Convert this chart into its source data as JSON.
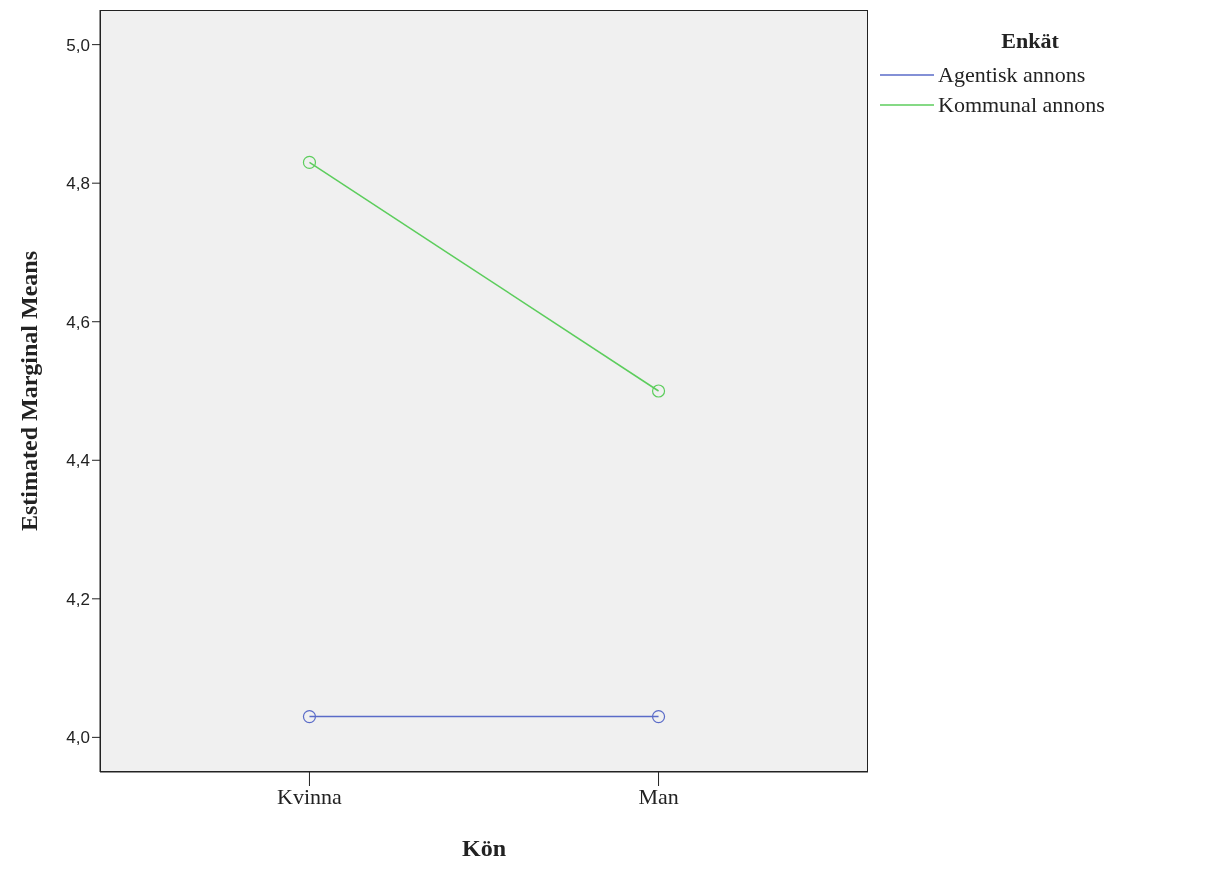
{
  "chart_data": {
    "type": "line",
    "xlabel": "Kön",
    "ylabel": "Estimated Marginal Means",
    "legend_title": "Enkät",
    "categories": [
      "Kvinna",
      "Man"
    ],
    "series": [
      {
        "name": "Agentisk annons",
        "color": "#5a6bc8",
        "values": [
          4.03,
          4.03
        ]
      },
      {
        "name": "Kommunal annons",
        "color": "#5ccd5c",
        "values": [
          4.83,
          4.5
        ]
      }
    ],
    "ylim": [
      3.95,
      5.05
    ],
    "yticks": [
      {
        "value": 4,
        "label": "4,0"
      },
      {
        "value": 4.2,
        "label": "4,2"
      },
      {
        "value": 4.4,
        "label": "4,4"
      },
      {
        "value": 4.6,
        "label": "4,6"
      },
      {
        "value": 4.8,
        "label": "4,8"
      },
      {
        "value": 5,
        "label": "5,0"
      }
    ],
    "grid": false,
    "legend": "top right",
    "marker": "circle",
    "line_style": "solid"
  }
}
